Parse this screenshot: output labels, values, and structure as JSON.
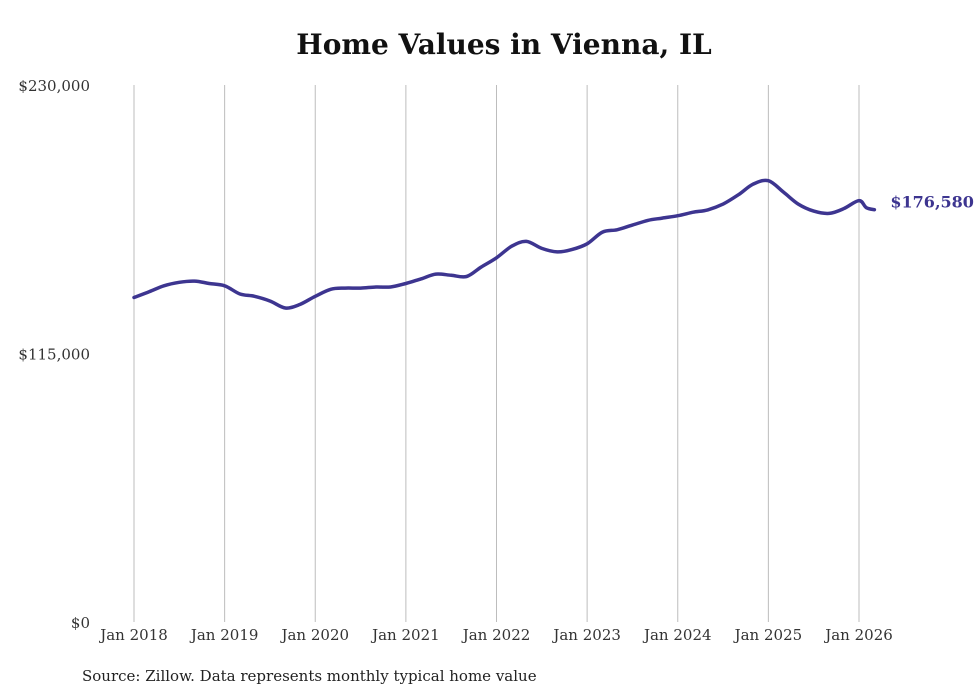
{
  "chart_data": {
    "type": "line",
    "title": "Home Values in Vienna, IL",
    "xlabel": "",
    "ylabel": "",
    "ylim": [
      0,
      230000
    ],
    "y_ticks": [
      "$230,000",
      "$115,000",
      "$0"
    ],
    "y_tick_values": [
      230000,
      115000,
      0
    ],
    "x_ticks": [
      "Jan 2018",
      "Jan 2019",
      "Jan 2020",
      "Jan 2021",
      "Jan 2022",
      "Jan 2023",
      "Jan 2024",
      "Jan 2025",
      "Jan 2026"
    ],
    "x_tick_values": [
      2018,
      2019,
      2020,
      2021,
      2022,
      2023,
      2024,
      2025,
      2026
    ],
    "grid": "vertical",
    "line_color": "#3d3590",
    "end_label": "$176,580",
    "series": [
      {
        "x": [
          2018.0,
          2018.17,
          2018.33,
          2018.5,
          2018.67,
          2018.83,
          2019.0,
          2019.17,
          2019.33,
          2019.5,
          2019.67,
          2019.83,
          2020.0,
          2020.17,
          2020.33,
          2020.5,
          2020.67,
          2020.83,
          2021.0,
          2021.17,
          2021.33,
          2021.5,
          2021.67,
          2021.83,
          2022.0,
          2022.17,
          2022.33,
          2022.5,
          2022.67,
          2022.83,
          2023.0,
          2023.17,
          2023.33,
          2023.5,
          2023.67,
          2023.83,
          2024.0,
          2024.17,
          2024.33,
          2024.5,
          2024.67,
          2024.83,
          2025.0,
          2025.17,
          2025.33,
          2025.5,
          2025.67,
          2025.83,
          2026.0,
          2026.08,
          2026.17
        ],
        "y": [
          139000,
          141500,
          144000,
          145500,
          146000,
          145000,
          144000,
          140500,
          139500,
          137500,
          134500,
          136000,
          139500,
          142500,
          143000,
          143000,
          143500,
          143500,
          145000,
          147000,
          149000,
          148500,
          148000,
          152000,
          156000,
          161000,
          163000,
          160000,
          158500,
          159500,
          162000,
          167000,
          168000,
          170000,
          172000,
          173000,
          174000,
          175500,
          176500,
          179000,
          183000,
          187500,
          189000,
          184000,
          179000,
          176000,
          175000,
          177000,
          180500,
          177500,
          176580
        ]
      }
    ]
  },
  "source_note": "Source: Zillow. Data represents monthly typical home value"
}
